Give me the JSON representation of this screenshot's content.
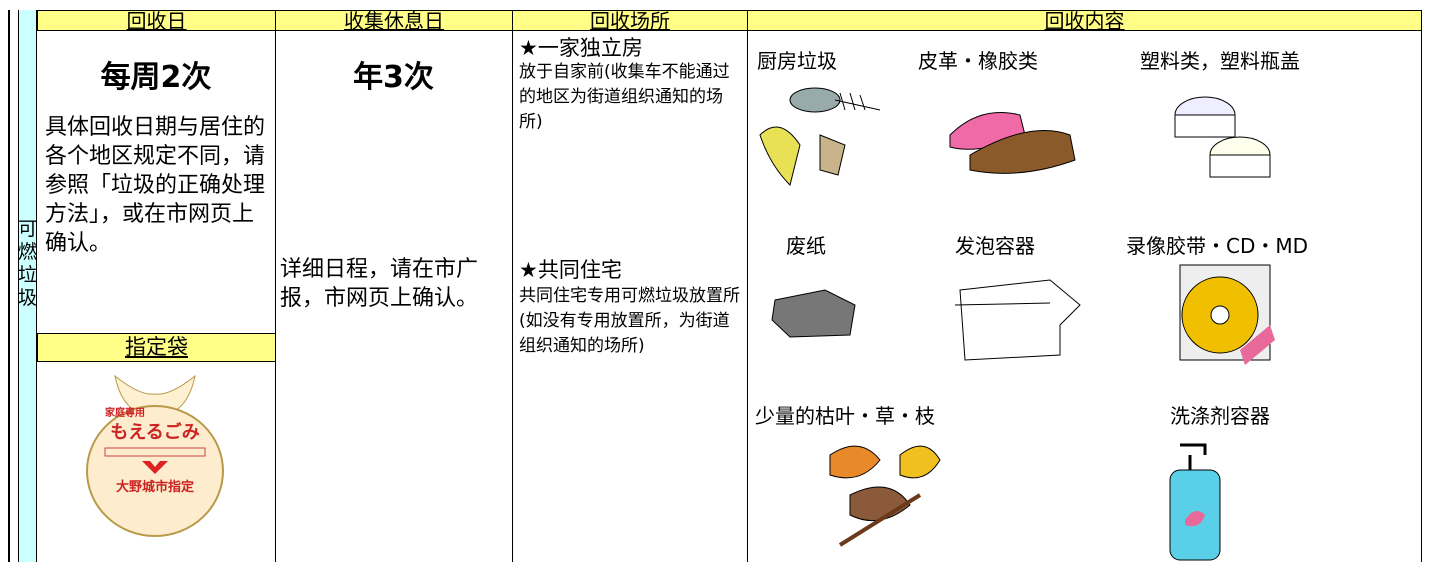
{
  "table": {
    "headers": [
      "回收日",
      "收集休息日",
      "回收场所",
      "回收内容"
    ],
    "row_label": "可燃垃圾",
    "collection_day": {
      "frequency": "每周2次",
      "note": "具体回收日期与居住的各个地区规定不同，请参照「垃圾的正确处理方法」，或在市网页上确认。",
      "bag_title": "指定袋",
      "bag_text": [
        "家庭専用",
        "もえるごみ",
        "大野城市指定"
      ]
    },
    "holiday": {
      "frequency": "年3次",
      "note": "详细日程，请在市广报，市网页上确认。"
    },
    "location": [
      {
        "title": "★一家独立房",
        "note": "放于自家前(收集车不能通过的地区为街道组织通知的场所)"
      },
      {
        "title": "★共同住宅",
        "note": "共同住宅专用可燃垃圾放置所(如没有专用放置所，为街道组织通知的场所)"
      }
    ],
    "items": [
      "厨房垃圾",
      "皮革・橡胶类",
      "塑料类，塑料瓶盖",
      "废纸",
      "发泡容器",
      "录像胶带・CD・MD",
      "少量的枯叶・草・枝",
      "洗涤剂容器"
    ]
  }
}
